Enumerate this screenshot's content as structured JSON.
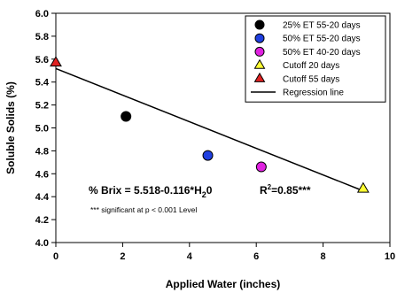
{
  "chart_data": {
    "type": "scatter",
    "xlabel": "Applied Water (inches)",
    "ylabel": "Soluble Solids (%)",
    "xlim": [
      0,
      10
    ],
    "ylim": [
      4.0,
      6.0
    ],
    "xticks": [
      "0",
      "2",
      "4",
      "6",
      "8",
      "10"
    ],
    "yticks": [
      "4.0",
      "4.2",
      "4.4",
      "4.6",
      "4.8",
      "5.0",
      "5.2",
      "5.4",
      "5.6",
      "5.8",
      "6.0"
    ],
    "grid": false,
    "legend_position": "top-right",
    "series": [
      {
        "name": "25% ET 55-20 days",
        "marker": "circle",
        "color": "#000000",
        "points": [
          {
            "x": 2.1,
            "y": 5.1
          }
        ]
      },
      {
        "name": "50% ET 55-20 days",
        "marker": "circle",
        "color": "#1f3fe0",
        "points": [
          {
            "x": 4.55,
            "y": 4.76
          }
        ]
      },
      {
        "name": "50% ET 40-20 days",
        "marker": "circle",
        "color": "#e022e0",
        "points": [
          {
            "x": 6.15,
            "y": 4.66
          }
        ]
      },
      {
        "name": "Cutoff 20 days",
        "marker": "triangle",
        "color": "#ffff33",
        "points": [
          {
            "x": 9.2,
            "y": 4.47
          }
        ]
      },
      {
        "name": "Cutoff 55 days",
        "marker": "triangle",
        "color": "#e02222",
        "points": [
          {
            "x": 0.0,
            "y": 5.57
          }
        ]
      }
    ],
    "regression": {
      "name": "Regression line",
      "intercept": 5.518,
      "slope": -0.116,
      "x_range": [
        0,
        9.2
      ]
    },
    "annotations": {
      "equation_prefix": "% Brix = 5.518-0.116*H",
      "equation_subscript": "2",
      "equation_suffix": "0",
      "r2_prefix": "R",
      "r2_superscript": "2",
      "r2_suffix": "=0.85***",
      "significance": "*** significant at p < 0.001 Level"
    }
  }
}
